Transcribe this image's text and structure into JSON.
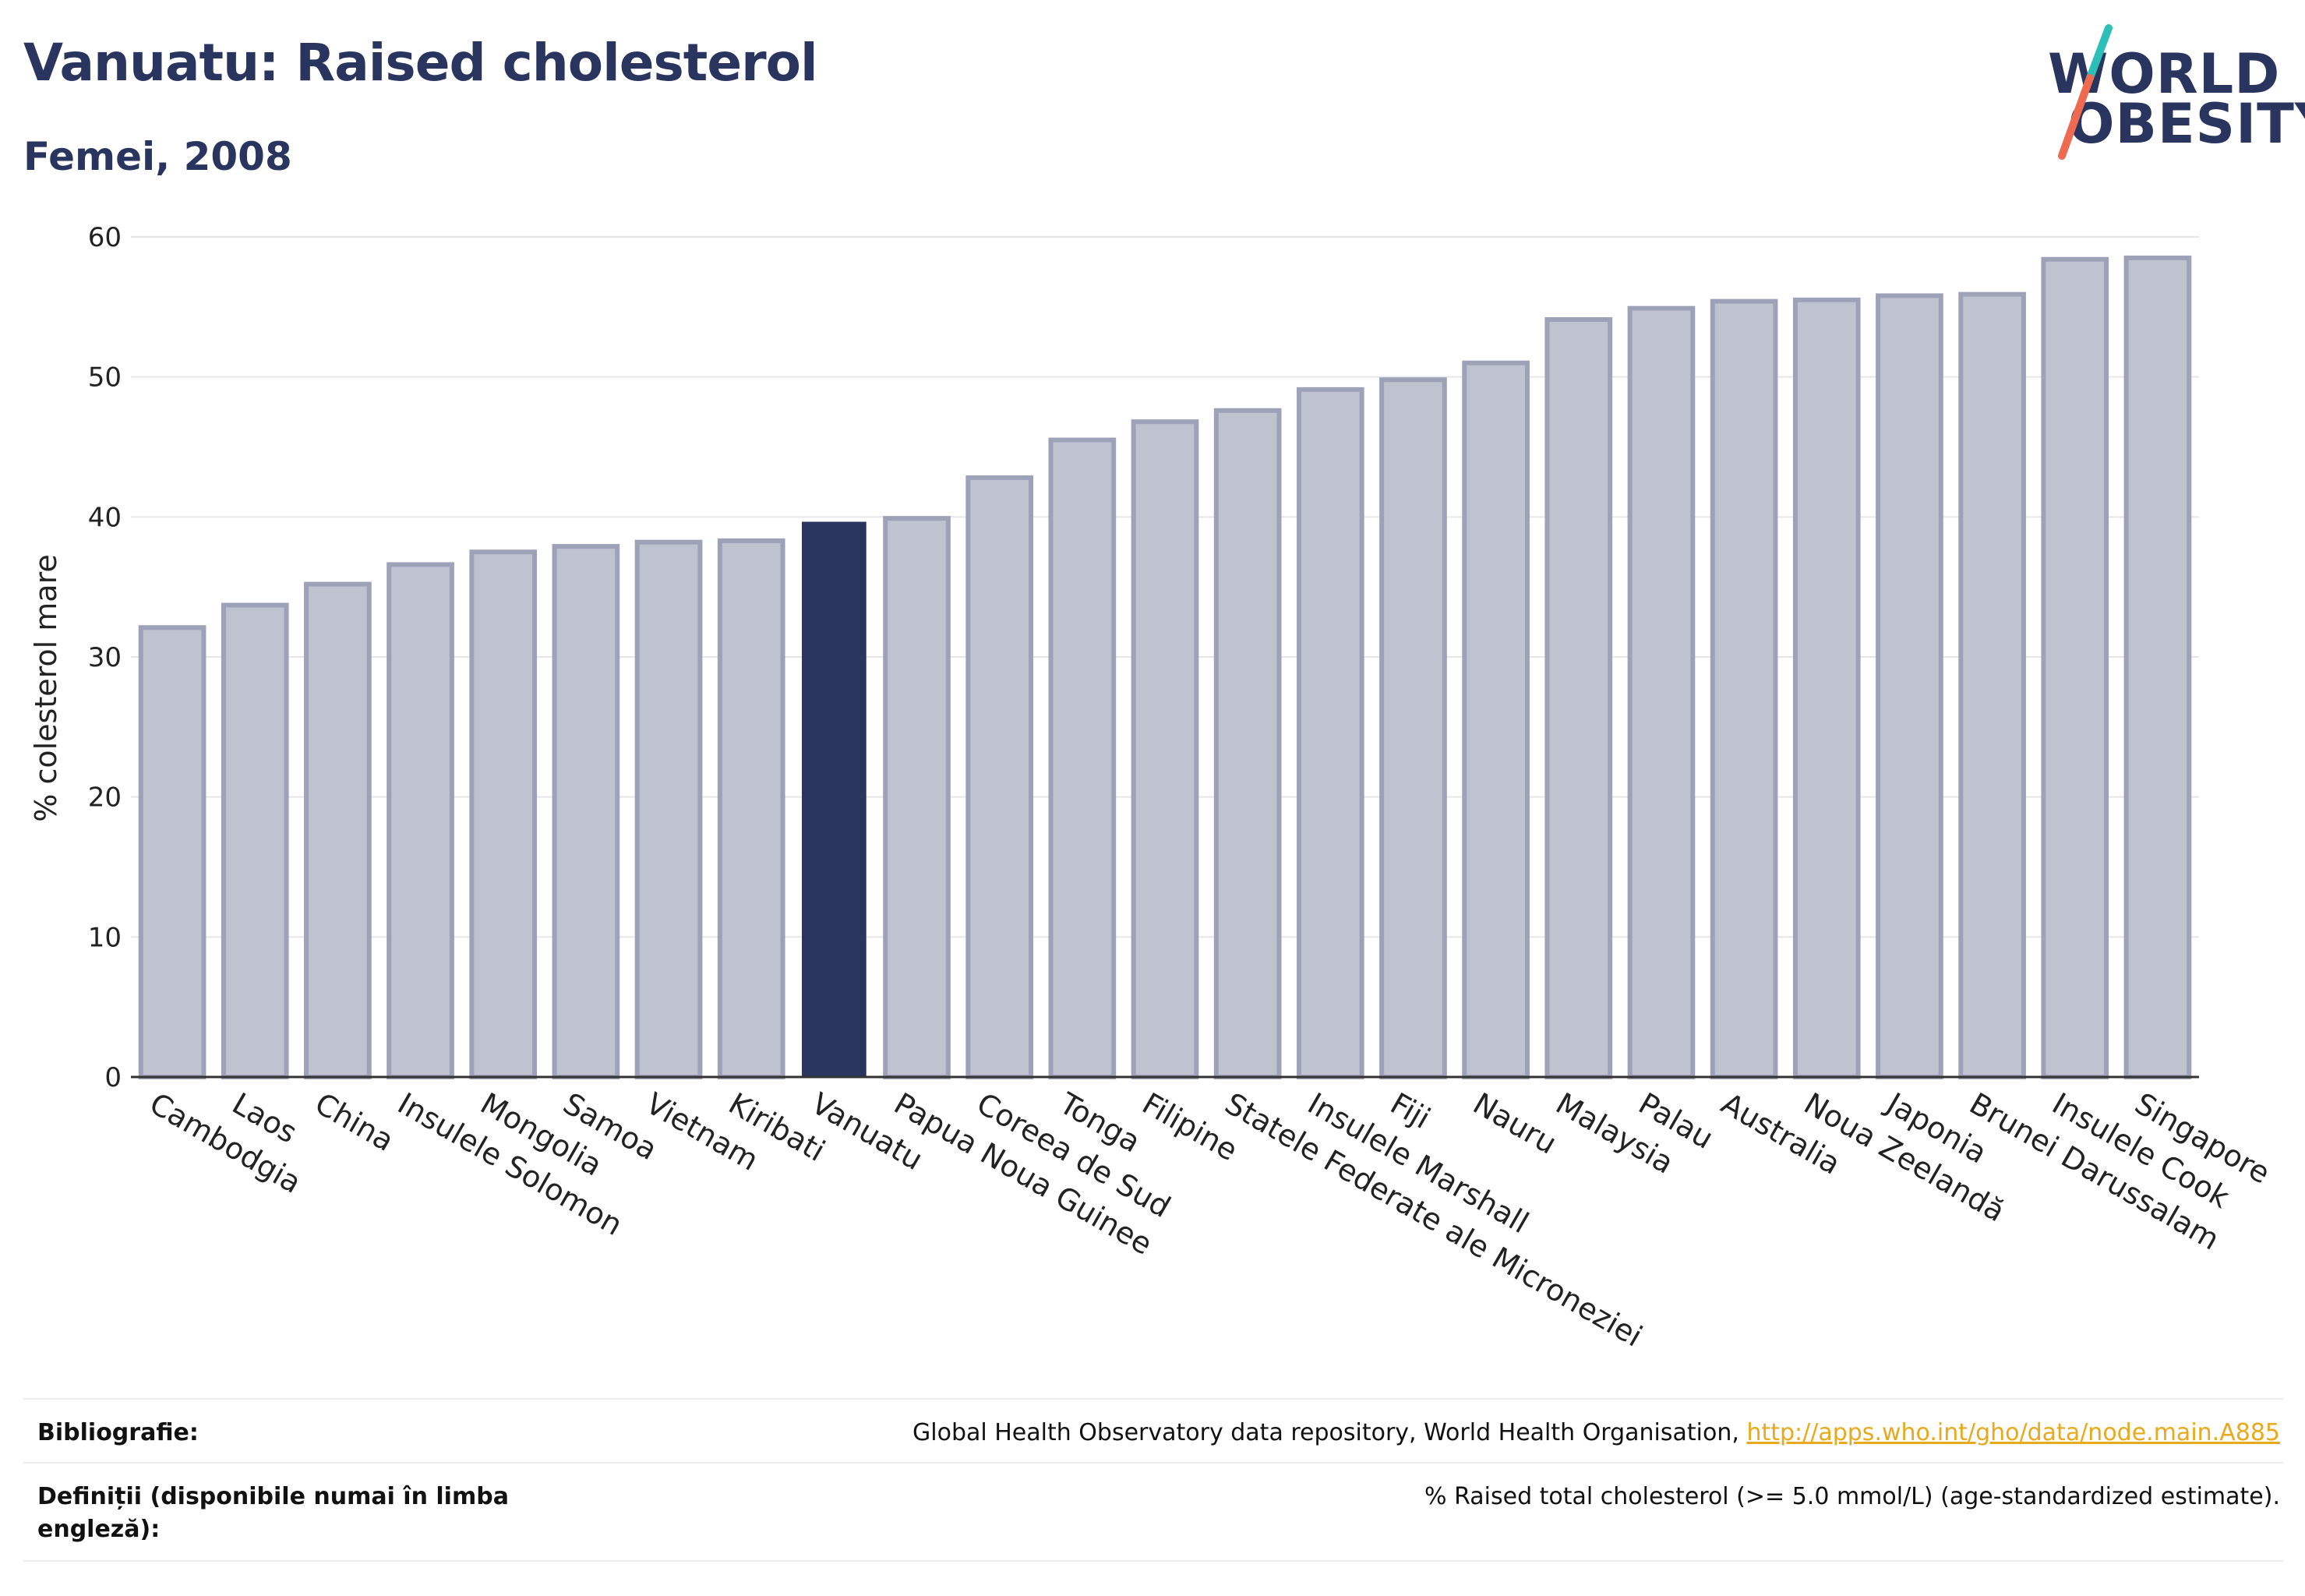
{
  "header": {
    "title": "Vanuatu: Raised cholesterol",
    "subtitle": "Femei, 2008",
    "logo_line1": "WORLD",
    "logo_line2": "OBESITY"
  },
  "colors": {
    "bar_default": "#bfc2cf",
    "bar_default_stroke": "#9ea2b8",
    "bar_highlight": "#2a355f",
    "text_dark": "#2a355f",
    "link": "#e8a91c",
    "logo_slash_top": "#2bbfb7",
    "logo_slash_bottom": "#ee6a50"
  },
  "chart_data": {
    "type": "bar",
    "ylabel": "% colesterol mare",
    "xlabel": "",
    "ylim": [
      0,
      60
    ],
    "yticks": [
      0,
      10,
      20,
      30,
      40,
      50,
      60
    ],
    "grid": true,
    "highlight": "Vanuatu",
    "categories": [
      "Cambodgia",
      "Laos",
      "China",
      "Insulele Solomon",
      "Mongolia",
      "Samoa",
      "Vietnam",
      "Kiribati",
      "Vanuatu",
      "Papua Noua Guinee",
      "Coreea de Sud",
      "Tonga",
      "Filipine",
      "Statele Federate ale Microneziei",
      "Insulele Marshall",
      "Fiji",
      "Nauru",
      "Malaysia",
      "Palau",
      "Australia",
      "Noua Zeelandă",
      "Japonia",
      "Brunei Darussalam",
      "Insulele Cook",
      "Singapore"
    ],
    "values": [
      32.1,
      33.7,
      35.2,
      36.6,
      37.5,
      37.9,
      38.2,
      38.3,
      39.6,
      39.9,
      42.8,
      45.5,
      46.8,
      47.6,
      49.1,
      49.8,
      51.0,
      54.1,
      54.9,
      55.4,
      55.5,
      55.8,
      55.9,
      58.4,
      58.5
    ]
  },
  "footer": {
    "bibliography_label": "Bibliografie:",
    "bibliography_text": "Global Health Observatory data repository, World Health Organisation, ",
    "bibliography_link": "http://apps.who.int/gho/data/node.main.A885",
    "definitions_label_line1": "Definiții (disponibile numai în limba",
    "definitions_label_line2": "engleză):",
    "definitions_text": "% Raised total cholesterol (>= 5.0 mmol/L) (age-standardized estimate)."
  }
}
